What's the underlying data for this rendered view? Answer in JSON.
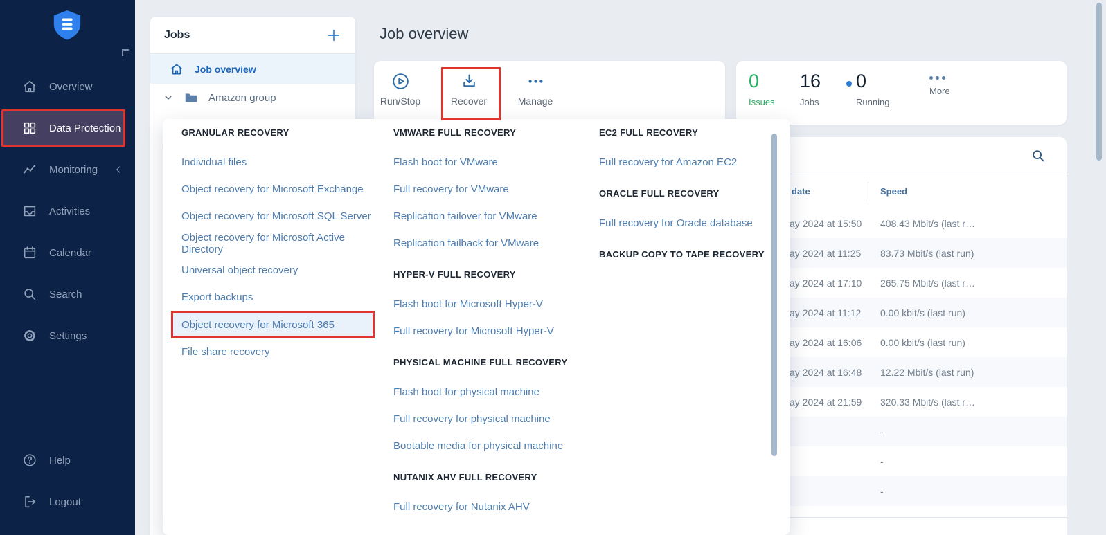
{
  "colors": {
    "accent_red": "#e1342e",
    "link_blue": "#4d7cae",
    "active_blue": "#1766c2",
    "issues_green": "#27ae60",
    "sidebar_bg": "#0c2347",
    "active_nav_purple": "#453f62",
    "running_dot_blue": "#2e7fd4"
  },
  "sidebar": {
    "logo_icon": "shield-logo",
    "items": [
      {
        "label": "Overview",
        "icon": "home-icon"
      },
      {
        "label": "Data Protection",
        "icon": "grid-icon",
        "active": true,
        "red_boxed": true
      },
      {
        "label": "Monitoring",
        "icon": "monitoring-icon",
        "collapse_icon": "chevron-left-icon"
      },
      {
        "label": "Activities",
        "icon": "activities-icon"
      },
      {
        "label": "Calendar",
        "icon": "calendar-icon"
      },
      {
        "label": "Search",
        "icon": "search-icon"
      },
      {
        "label": "Settings",
        "icon": "settings-icon"
      }
    ],
    "footer_items": [
      {
        "label": "Help",
        "icon": "help-icon"
      },
      {
        "label": "Logout",
        "icon": "logout-icon"
      }
    ]
  },
  "jobs_panel": {
    "title": "Jobs",
    "add_button": "plus-icon",
    "items": [
      {
        "label": "Job overview",
        "icon": "house-icon",
        "active": true
      },
      {
        "label": "Amazon group",
        "icon": "folder-icon",
        "expander": "chevron-down-icon"
      }
    ]
  },
  "header": {
    "title": "Job overview"
  },
  "toolbar": {
    "buttons": [
      {
        "label": "Run/Stop",
        "icon": "play-circle-icon"
      },
      {
        "label": "Recover",
        "icon": "download-icon",
        "red_boxed": true
      },
      {
        "label": "Manage",
        "icon": "ellipsis-icon"
      }
    ]
  },
  "stats": {
    "issues": {
      "value": "0",
      "label": "Issues"
    },
    "jobs": {
      "value": "16",
      "label": "Jobs"
    },
    "running": {
      "value": "0",
      "label": "Running"
    },
    "more_label": "More"
  },
  "recover_menu": {
    "columns": [
      {
        "sections": [
          {
            "title": "GRANULAR RECOVERY",
            "items": [
              {
                "label": "Individual files"
              },
              {
                "label": "Object recovery for Microsoft Exchange"
              },
              {
                "label": "Object recovery for Microsoft SQL Server"
              },
              {
                "label": "Object recovery for Microsoft Active Directory"
              },
              {
                "label": "Universal object recovery"
              },
              {
                "label": "Export backups"
              },
              {
                "label": "Object recovery for Microsoft 365",
                "highlighted": true,
                "red_boxed": true
              },
              {
                "label": "File share recovery"
              }
            ]
          }
        ]
      },
      {
        "sections": [
          {
            "title": "VMWARE FULL RECOVERY",
            "items": [
              {
                "label": "Flash boot for VMware"
              },
              {
                "label": "Full recovery for VMware"
              },
              {
                "label": "Replication failover for VMware"
              },
              {
                "label": "Replication failback for VMware"
              }
            ]
          },
          {
            "title": "HYPER-V FULL RECOVERY",
            "items": [
              {
                "label": "Flash boot for Microsoft Hyper-V"
              },
              {
                "label": "Full recovery for Microsoft Hyper-V"
              }
            ]
          },
          {
            "title": "PHYSICAL MACHINE FULL RECOVERY",
            "items": [
              {
                "label": "Flash boot for physical machine"
              },
              {
                "label": "Full recovery for physical machine"
              },
              {
                "label": "Bootable media for physical machine"
              }
            ]
          },
          {
            "title": "NUTANIX AHV FULL RECOVERY",
            "items": [
              {
                "label": "Full recovery for Nutanix AHV"
              }
            ]
          }
        ]
      },
      {
        "sections": [
          {
            "title": "EC2 FULL RECOVERY",
            "items": [
              {
                "label": "Full recovery for Amazon EC2"
              }
            ]
          },
          {
            "title": "ORACLE FULL RECOVERY",
            "items": [
              {
                "label": "Full recovery for Oracle database"
              }
            ]
          },
          {
            "title": "BACKUP COPY TO TAPE RECOVERY",
            "items": []
          }
        ]
      }
    ]
  },
  "table": {
    "columns": [
      "date",
      "Speed"
    ],
    "rows": [
      {
        "date": "ay 2024 at 15:50",
        "speed": "408.43 Mbit/s (last r…"
      },
      {
        "date": "ay 2024 at 11:25",
        "speed": "83.73 Mbit/s (last run)"
      },
      {
        "date": "ay 2024 at 17:10",
        "speed": "265.75 Mbit/s (last r…"
      },
      {
        "date": "ay 2024 at 11:12",
        "speed": "0.00 kbit/s (last run)"
      },
      {
        "date": "ay 2024 at 16:06",
        "speed": "0.00 kbit/s (last run)"
      },
      {
        "date": "ay 2024 at 16:48",
        "speed": "12.22 Mbit/s (last run)"
      },
      {
        "date": "ay 2024 at 21:59",
        "speed": "320.33 Mbit/s (last r…"
      },
      {
        "date": "",
        "speed": "-"
      },
      {
        "date": "",
        "speed": "-"
      },
      {
        "date": "",
        "speed": "-"
      }
    ]
  }
}
